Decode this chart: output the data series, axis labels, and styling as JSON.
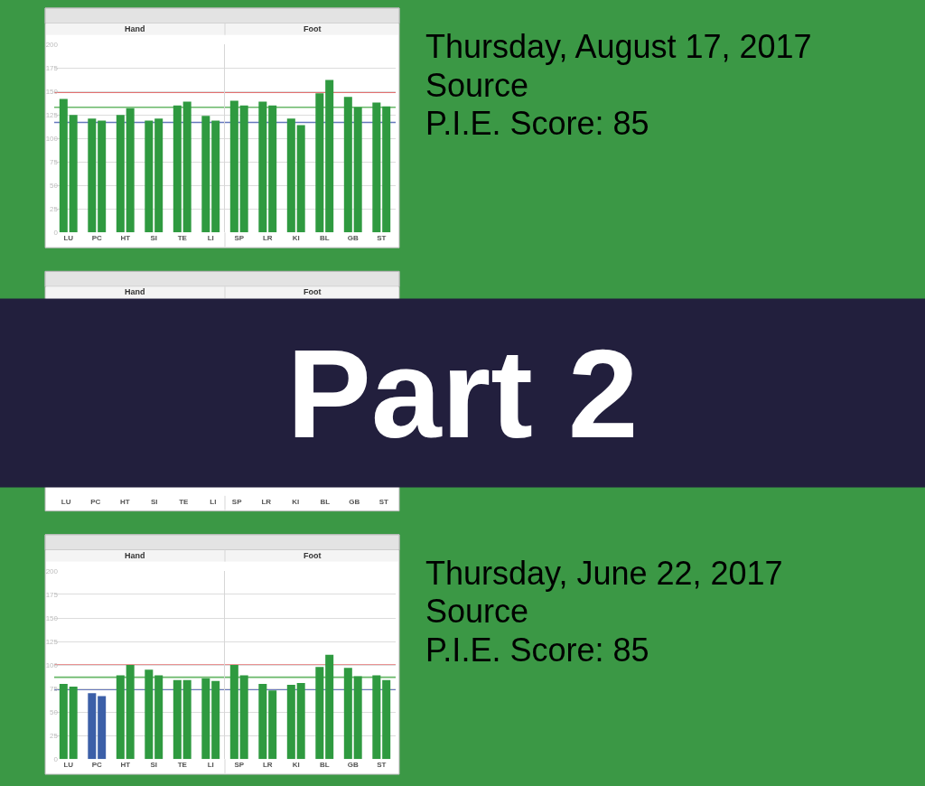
{
  "chart_data": [
    {
      "type": "bar",
      "title": "Hand",
      "categories": [
        "LU",
        "PC",
        "HT",
        "SI",
        "TE",
        "LI"
      ],
      "series": [
        {
          "color": "#2f9a40",
          "values": [
            142,
            121,
            125,
            119,
            135,
            124
          ]
        },
        {
          "color": "#2f9a40",
          "values": [
            125,
            119,
            132,
            121,
            139,
            119
          ]
        }
      ],
      "ylim": [
        0,
        200
      ],
      "yticks": [
        0,
        25,
        50,
        75,
        100,
        125,
        150,
        175,
        200
      ],
      "ref_lines": [
        {
          "axis": "y",
          "value": 149,
          "color": "#e36f6f"
        },
        {
          "axis": "y",
          "value": 133,
          "color": "#69b869"
        },
        {
          "axis": "y",
          "value": 117,
          "color": "#6678bd"
        }
      ],
      "grid": "y"
    },
    {
      "type": "bar",
      "title": "Foot",
      "annotations": [
        "Thursday, August 17, 2017",
        "Source",
        "P.I.E. Score: 85"
      ],
      "categories": [
        "SP",
        "LR",
        "KI",
        "BL",
        "GB",
        "ST"
      ],
      "series": [
        {
          "color": "#2f9a40",
          "values": [
            140,
            139,
            121,
            148,
            144,
            138
          ]
        },
        {
          "color": "#2f9a40",
          "values": [
            135,
            135,
            114,
            162,
            133,
            134
          ]
        }
      ],
      "ylim": [
        0,
        200
      ],
      "yticks": [
        0,
        25,
        50,
        75,
        100,
        125,
        150,
        175,
        200
      ],
      "tick_labels": "x",
      "ref_lines": [
        {
          "axis": "y",
          "value": 149,
          "color": "#e36f6f"
        },
        {
          "axis": "y",
          "value": 133,
          "color": "#69b869"
        },
        {
          "axis": "y",
          "value": 117,
          "color": "#6678bd"
        }
      ],
      "grid": "y"
    },
    {
      "type": "other",
      "title": "Hand",
      "categories": [
        "LU",
        "PC",
        "HT",
        "SI",
        "TE",
        "LI"
      ]
    },
    {
      "type": "other",
      "title": "Foot",
      "annotations": [
        "Part 2"
      ],
      "categories": [
        "SP",
        "LR",
        "KI",
        "BL",
        "GB",
        "ST"
      ]
    },
    {
      "type": "bar",
      "title": "Hand",
      "categories": [
        "LU",
        "PC",
        "HT",
        "SI",
        "TE",
        "LI"
      ],
      "series": [
        {
          "colors": [
            "#2f9a40",
            "#3c5fa8",
            "#2f9a40",
            "#2f9a40",
            "#2f9a40",
            "#2f9a40"
          ],
          "values": [
            80,
            70,
            89,
            95,
            84,
            86
          ]
        },
        {
          "colors": [
            "#2f9a40",
            "#3c5fa8",
            "#2f9a40",
            "#2f9a40",
            "#2f9a40",
            "#2f9a40"
          ],
          "values": [
            77,
            67,
            100,
            89,
            84,
            83
          ]
        }
      ],
      "ylim": [
        0,
        200
      ],
      "yticks": [
        0,
        25,
        50,
        75,
        100,
        125,
        150,
        175,
        200
      ],
      "ref_lines": [
        {
          "axis": "y",
          "value": 100,
          "color": "#e36f6f"
        },
        {
          "axis": "y",
          "value": 87,
          "color": "#69b869"
        },
        {
          "axis": "y",
          "value": 74,
          "color": "#6678bd"
        }
      ],
      "grid": "y"
    },
    {
      "type": "bar",
      "title": "Foot",
      "annotations": [
        "Thursday, June 22, 2017",
        "Source",
        "P.I.E. Score: 85"
      ],
      "categories": [
        "SP",
        "LR",
        "KI",
        "BL",
        "GB",
        "ST"
      ],
      "series": [
        {
          "color": "#2f9a40",
          "values": [
            100,
            80,
            79,
            98,
            97,
            89
          ]
        },
        {
          "color": "#2f9a40",
          "values": [
            89,
            73,
            81,
            111,
            88,
            84
          ]
        }
      ],
      "ylim": [
        0,
        200
      ],
      "yticks": [
        0,
        25,
        50,
        75,
        100,
        125,
        150,
        175,
        200
      ],
      "tick_labels": "x",
      "ref_lines": [
        {
          "axis": "y",
          "value": 100,
          "color": "#e36f6f"
        },
        {
          "axis": "y",
          "value": 87,
          "color": "#69b869"
        },
        {
          "axis": "y",
          "value": 74,
          "color": "#6678bd"
        }
      ],
      "grid": "y"
    }
  ]
}
